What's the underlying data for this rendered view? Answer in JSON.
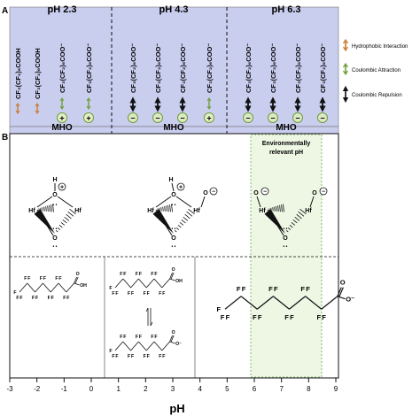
{
  "panel_a": {
    "label": "A",
    "ph_headers": [
      "pH 2.3",
      "pH 4.3",
      "pH 6.3"
    ],
    "mho_labels": [
      "MHO",
      "MHO",
      "MHO"
    ],
    "molecules": {
      "neutral_1": "CF₃(CF₂)₆COOH",
      "neutral_2": "CF₃(CF₂)₆COOH",
      "anion": "CF₃(CF₂)₆COO⁻"
    },
    "legend": [
      {
        "label": "Hydrophobic Interaction",
        "icon": "orange-double-arrow"
      },
      {
        "label": "Coulombic Attraction",
        "icon": "green-double-arrow"
      },
      {
        "label": "Coulombic Repulsion",
        "icon": "black-double-arrow"
      }
    ],
    "colors": {
      "background": "#c9cdee",
      "plus_fill": "#e6f0c8",
      "minus_fill": "#dde9c4",
      "orange": "#c77b2e",
      "green": "#6e9e3a"
    }
  },
  "panel_b": {
    "label": "B",
    "env_label_1": "Environmentally",
    "env_label_2": "relevant pH",
    "chem": {
      "hf": "Hf",
      "o": "O",
      "h": "H",
      "plus": "+",
      "minus": "−",
      "lone_pair": "• •",
      "oh": "OH",
      "o_minus": "O⁻",
      "f": "F",
      "o_atom": "O"
    },
    "x_axis": {
      "label": "pH",
      "ticks": [
        "-3",
        "-2",
        "-1",
        "0",
        "1",
        "2",
        "3",
        "4",
        "5",
        "6",
        "7",
        "8",
        "9"
      ]
    }
  }
}
